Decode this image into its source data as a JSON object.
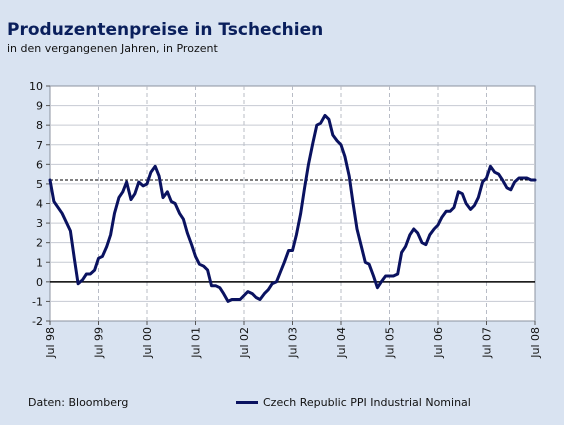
{
  "chart_data": {
    "type": "line",
    "title": "Produzentenpreise in Tschechien",
    "subtitle": "in den vergangenen Jahren, in Prozent",
    "source": "Daten: Bloomberg",
    "ylim": [
      -2,
      10
    ],
    "y_ticks": [
      "-2",
      "-1",
      "0",
      "1",
      "2",
      "3",
      "4",
      "5",
      "6",
      "7",
      "8",
      "9",
      "10"
    ],
    "x_ticks": [
      "Jul 98",
      "Jul 99",
      "Jul 00",
      "Jul 01",
      "Jul 02",
      "Jul 03",
      "Jul 04",
      "Jul 05",
      "Jul 06",
      "Jul 07",
      "Jul 08"
    ],
    "xlim": [
      1998.5,
      2008.5
    ],
    "grid": true,
    "reference_lines": [
      {
        "y": 0,
        "style": "solid"
      },
      {
        "y": 5.2,
        "style": "dashed"
      }
    ],
    "legend_position": "bottom",
    "series": [
      {
        "name": "Czech Republic PPI Industrial Nominal",
        "color": "#0a1260",
        "x": [
          1998.5,
          1998.58,
          1998.75,
          1998.92,
          1999.0,
          1999.08,
          1999.17,
          1999.25,
          1999.33,
          1999.42,
          1999.5,
          1999.58,
          1999.67,
          1999.75,
          1999.83,
          1999.92,
          2000.0,
          2000.08,
          2000.17,
          2000.25,
          2000.33,
          2000.42,
          2000.5,
          2000.58,
          2000.67,
          2000.75,
          2000.83,
          2000.92,
          2001.0,
          2001.08,
          2001.17,
          2001.25,
          2001.33,
          2001.42,
          2001.5,
          2001.58,
          2001.67,
          2001.75,
          2001.83,
          2001.92,
          2002.0,
          2002.08,
          2002.17,
          2002.25,
          2002.33,
          2002.42,
          2002.5,
          2002.58,
          2002.67,
          2002.75,
          2002.83,
          2002.92,
          2003.0,
          2003.08,
          2003.17,
          2003.25,
          2003.33,
          2003.42,
          2003.5,
          2003.58,
          2003.67,
          2003.75,
          2003.83,
          2003.92,
          2004.0,
          2004.08,
          2004.17,
          2004.25,
          2004.33,
          2004.42,
          2004.5,
          2004.58,
          2004.67,
          2004.75,
          2004.83,
          2004.92,
          2005.0,
          2005.08,
          2005.17,
          2005.25,
          2005.33,
          2005.42,
          2005.5,
          2005.58,
          2005.67,
          2005.75,
          2005.83,
          2005.92,
          2006.0,
          2006.08,
          2006.17,
          2006.25,
          2006.33,
          2006.42,
          2006.5,
          2006.58,
          2006.67,
          2006.75,
          2006.83,
          2006.92,
          2007.0,
          2007.08,
          2007.17,
          2007.25,
          2007.33,
          2007.42,
          2007.5,
          2007.58,
          2007.67,
          2007.75,
          2007.83,
          2007.92,
          2008.0,
          2008.08,
          2008.17,
          2008.25,
          2008.33,
          2008.42,
          2008.5
        ],
        "values": [
          5.2,
          4.1,
          3.5,
          2.6,
          1.2,
          -0.1,
          0.1,
          0.4,
          0.4,
          0.6,
          1.2,
          1.3,
          1.8,
          2.4,
          3.5,
          4.3,
          4.6,
          5.1,
          4.2,
          4.5,
          5.1,
          4.9,
          5.0,
          5.6,
          5.9,
          5.4,
          4.3,
          4.6,
          4.1,
          4.0,
          3.5,
          3.2,
          2.5,
          1.9,
          1.3,
          0.9,
          0.8,
          0.6,
          -0.2,
          -0.2,
          -0.3,
          -0.6,
          -1.0,
          -0.9,
          -0.9,
          -0.9,
          -0.7,
          -0.5,
          -0.6,
          -0.8,
          -0.9,
          -0.6,
          -0.4,
          -0.1,
          0.0,
          0.5,
          1.0,
          1.6,
          1.6,
          2.4,
          3.5,
          4.8,
          6.0,
          7.1,
          8.0,
          8.1,
          8.5,
          8.3,
          7.5,
          7.2,
          7.0,
          6.4,
          5.4,
          4.0,
          2.7,
          1.8,
          1.0,
          0.9,
          0.3,
          -0.3,
          0.0,
          0.3,
          0.3,
          0.3,
          0.4,
          1.5,
          1.8,
          2.4,
          2.7,
          2.5,
          2.0,
          1.9,
          2.4,
          2.7,
          2.9,
          3.3,
          3.6,
          3.6,
          3.8,
          4.6,
          4.5,
          4.0,
          3.7,
          3.9,
          4.3,
          5.1,
          5.3,
          5.9,
          5.6,
          5.5,
          5.2,
          4.8,
          4.7,
          5.1,
          5.3,
          5.3,
          5.3,
          5.2,
          5.2
        ]
      }
    ]
  }
}
